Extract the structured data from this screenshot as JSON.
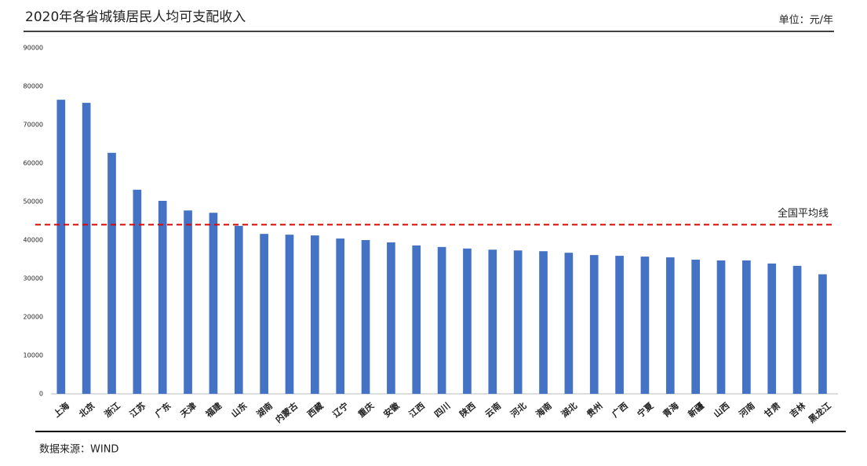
{
  "chart_data": {
    "type": "bar",
    "title": "2020年各省城镇居民人均可支配收入",
    "unit": "单位：元/年",
    "source": "数据来源：WIND",
    "categories": [
      "上海",
      "北京",
      "浙江",
      "江苏",
      "广东",
      "天津",
      "福建",
      "山东",
      "湖南",
      "内蒙古",
      "西藏",
      "辽宁",
      "重庆",
      "安徽",
      "江西",
      "四川",
      "陕西",
      "云南",
      "河北",
      "海南",
      "湖北",
      "贵州",
      "广西",
      "宁夏",
      "青海",
      "新疆",
      "山西",
      "河南",
      "甘肃",
      "吉林",
      "黑龙江"
    ],
    "values": [
      76500,
      75700,
      62700,
      53100,
      50200,
      47700,
      47100,
      43700,
      41600,
      41400,
      41200,
      40400,
      40000,
      39400,
      38600,
      38200,
      37800,
      37500,
      37300,
      37100,
      36700,
      36100,
      35900,
      35700,
      35500,
      34900,
      34700,
      34700,
      33900,
      33300,
      31100
    ],
    "color": "#4472c4",
    "ylim": [
      0,
      90000
    ],
    "yticks": [
      0,
      10000,
      20000,
      30000,
      40000,
      50000,
      60000,
      70000,
      80000,
      90000
    ],
    "grid": false,
    "reference_line": {
      "value": 44000,
      "label": "全国平均线",
      "color": "#e00000"
    }
  }
}
